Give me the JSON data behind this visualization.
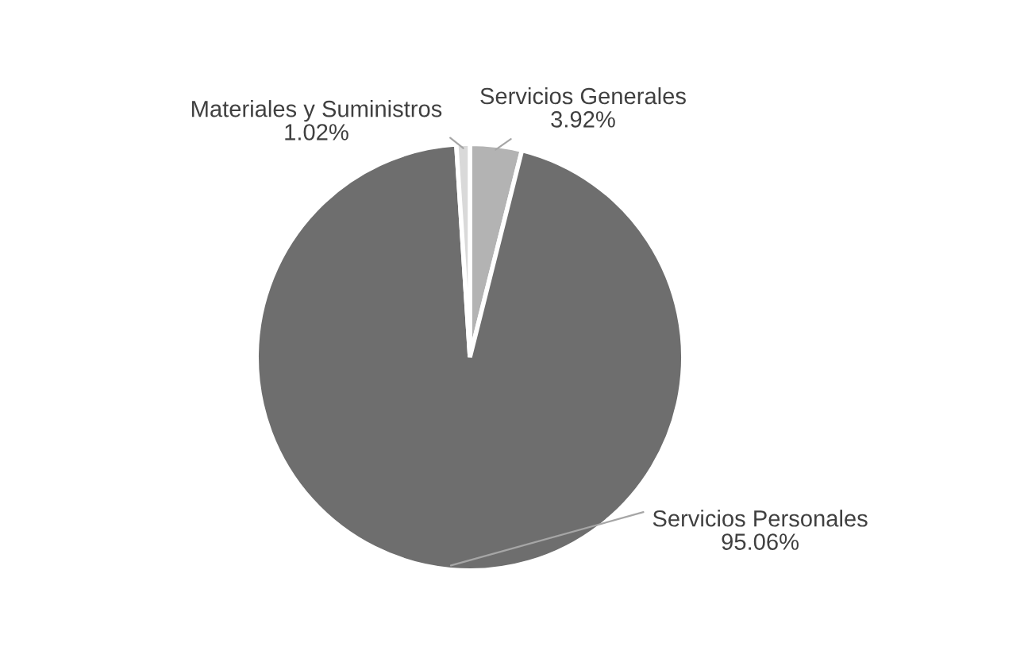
{
  "chart_data": {
    "type": "pie",
    "categories": [
      "Servicios Generales",
      "Servicios Personales",
      "Materiales y Suministros"
    ],
    "values": [
      3.92,
      95.06,
      1.02
    ],
    "value_labels": [
      "3.92%",
      "95.06%",
      "1.02%"
    ],
    "colors": [
      "#b3b3b3",
      "#6e6e6e",
      "#d9d9d9"
    ],
    "legend": false
  }
}
